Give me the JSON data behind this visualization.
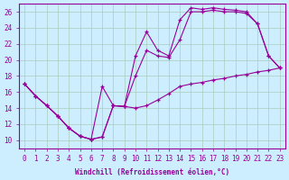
{
  "xlabel": "Windchill (Refroidissement éolien,°C)",
  "x_hours": [
    0,
    1,
    2,
    3,
    4,
    5,
    6,
    7,
    8,
    9,
    10,
    11,
    12,
    13,
    14,
    15,
    16,
    17,
    18,
    19,
    20,
    21,
    22,
    23
  ],
  "line_top": [
    17.0,
    15.5,
    14.3,
    13.0,
    11.5,
    10.5,
    10.1,
    16.7,
    14.3,
    14.2,
    20.5,
    23.5,
    21.2,
    20.5,
    25.0,
    26.5,
    26.3,
    26.5,
    26.3,
    26.2,
    26.0,
    24.5,
    20.5,
    19.0
  ],
  "line_mid": [
    17.0,
    15.5,
    14.3,
    13.0,
    11.5,
    10.5,
    10.1,
    10.4,
    14.3,
    14.2,
    18.0,
    21.2,
    20.5,
    20.3,
    22.5,
    26.0,
    26.0,
    26.2,
    26.0,
    26.0,
    25.8,
    24.5,
    20.5,
    19.0
  ],
  "line_low": [
    17.0,
    15.5,
    14.3,
    13.0,
    11.5,
    10.5,
    10.1,
    10.4,
    14.3,
    14.2,
    14.0,
    14.3,
    15.0,
    15.8,
    16.7,
    17.0,
    17.2,
    17.5,
    17.7,
    18.0,
    18.2,
    18.5,
    18.7,
    19.0
  ],
  "color": "#990099",
  "bg_color": "#cceeff",
  "grid_color": "#aaccbb",
  "ylim": [
    9.0,
    27.0
  ],
  "yticks": [
    10,
    12,
    14,
    16,
    18,
    20,
    22,
    24,
    26
  ],
  "marker": "+"
}
